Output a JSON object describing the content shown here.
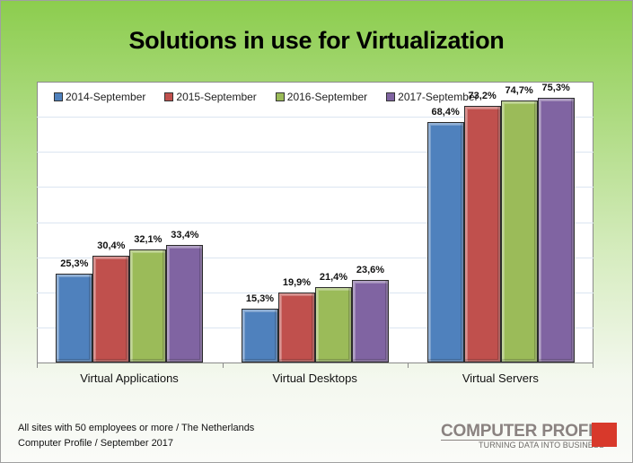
{
  "title": "Solutions in use for Virtualization",
  "footnotes": {
    "line1": "All sites with 50 employees or more / The Netherlands",
    "line2": "Computer Profile / September 2017"
  },
  "logo": {
    "name": "COMPUTER PROFILE",
    "tagline": "TURNING DATA INTO BUSINESS",
    "square_color": "#d8392b"
  },
  "chart_data": {
    "type": "bar",
    "title": "Solutions in use for Virtualization",
    "xlabel": "",
    "ylabel": "",
    "ylim": [
      0,
      80
    ],
    "y_gridlines": [
      10,
      20,
      30,
      40,
      50,
      60,
      70
    ],
    "grid": true,
    "legend_position": "top-inside",
    "categories": [
      "Virtual Applications",
      "Virtual Desktops",
      "Virtual Servers"
    ],
    "series": [
      {
        "name": "2014-September",
        "color": "#4f81bd",
        "values": [
          25.3,
          15.3,
          68.4
        ],
        "labels": [
          "25,3%",
          "15,3%",
          "68,4%"
        ]
      },
      {
        "name": "2015-September",
        "color": "#c0504d",
        "values": [
          30.4,
          19.9,
          73.2
        ],
        "labels": [
          "30,4%",
          "19,9%",
          "73,2%"
        ]
      },
      {
        "name": "2016-September",
        "color": "#9bbb59",
        "values": [
          32.1,
          21.4,
          74.7
        ],
        "labels": [
          "32,1%",
          "21,4%",
          "74,7%"
        ]
      },
      {
        "name": "2017-September",
        "color": "#8064a2",
        "values": [
          33.4,
          23.6,
          75.3
        ],
        "labels": [
          "33,4%",
          "23,6%",
          "75,3%"
        ]
      }
    ]
  }
}
